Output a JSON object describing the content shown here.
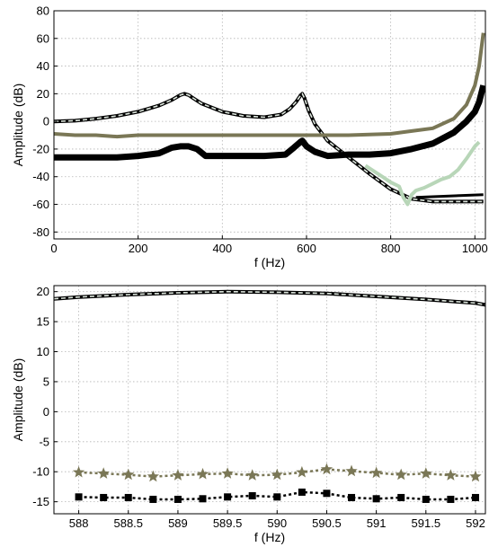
{
  "colors": {
    "model": "#000000",
    "model_inner": "#dfe8df",
    "stars": "#7a7756",
    "squares": "#000000",
    "lightgreen": "#b8d6b8"
  },
  "chart_data": [
    {
      "type": "line",
      "xlabel": "f (Hz)",
      "ylabel": "Amplitude (dB)",
      "xlim": [
        0,
        1025
      ],
      "ylim": [
        -85,
        80
      ],
      "xticks": [
        0,
        200,
        400,
        600,
        800,
        1000
      ],
      "yticks": [
        80,
        60,
        40,
        20,
        0,
        -20,
        -40,
        -60,
        -80
      ],
      "grid": true,
      "series": [
        {
          "style": "model",
          "x": [
            0,
            50,
            100,
            150,
            200,
            250,
            280,
            300,
            310,
            320,
            330,
            350,
            400,
            450,
            500,
            540,
            560,
            575,
            585,
            590,
            595,
            605,
            620,
            650,
            700,
            750,
            800,
            850,
            900,
            950,
            1000,
            1020
          ],
          "y": [
            0,
            0.5,
            2,
            4,
            7,
            11.5,
            15.5,
            19,
            20,
            19,
            17,
            13,
            7,
            4,
            3,
            5,
            9,
            14,
            18.5,
            20,
            17,
            8,
            -2,
            -14,
            -26,
            -38,
            -49,
            -56,
            -58,
            -58,
            -58,
            -58
          ]
        },
        {
          "style": "stars",
          "x": [
            0,
            50,
            100,
            150,
            200,
            300,
            400,
            500,
            600,
            700,
            800,
            850,
            900,
            950,
            980,
            1000,
            1010,
            1020
          ],
          "y": [
            -9,
            -10,
            -10,
            -11,
            -10,
            -10,
            -10,
            -10,
            -10,
            -10,
            -9,
            -7,
            -5,
            2,
            12,
            26,
            40,
            64
          ]
        },
        {
          "style": "squares",
          "x": [
            0,
            50,
            100,
            150,
            200,
            250,
            280,
            300,
            320,
            340,
            360,
            400,
            450,
            500,
            550,
            570,
            585,
            590,
            600,
            620,
            650,
            700,
            750,
            800,
            850,
            900,
            950,
            980,
            1000,
            1010,
            1020
          ],
          "y": [
            -26,
            -26,
            -26,
            -26,
            -25,
            -23,
            -19,
            -18,
            -18,
            -20,
            -25,
            -25,
            -25,
            -25,
            -24,
            -19,
            -15,
            -14,
            -18,
            -22,
            -25,
            -24,
            -24,
            -23,
            -20,
            -16,
            -8,
            0,
            7,
            14,
            26
          ]
        },
        {
          "style": "lightgreen",
          "x": [
            740,
            760,
            780,
            800,
            820,
            830,
            840,
            850,
            860,
            880,
            900,
            920,
            940,
            960,
            980,
            1000,
            1010
          ],
          "y": [
            -32,
            -36,
            -40,
            -44,
            -47,
            -55,
            -60,
            -53,
            -50,
            -48,
            -45,
            -42,
            -40,
            -35,
            -27,
            -18,
            -15
          ]
        },
        {
          "style": "flat",
          "x": [
            860,
            1020
          ],
          "y": [
            -55,
            -53
          ]
        }
      ]
    },
    {
      "type": "line",
      "xlabel": "f (Hz)",
      "ylabel": "Amplitude (dB)",
      "xlim": [
        587.75,
        592.1
      ],
      "ylim": [
        -17,
        21
      ],
      "xticks": [
        588,
        588.5,
        589,
        589.5,
        590,
        590.5,
        591,
        591.5,
        592
      ],
      "yticks": [
        20,
        15,
        10,
        5,
        0,
        -5,
        -10,
        -15
      ],
      "grid": true,
      "series": [
        {
          "style": "model",
          "x": [
            587.75,
            588,
            588.5,
            589,
            589.5,
            590,
            590.5,
            591,
            591.5,
            592,
            592.1
          ],
          "y": [
            18.8,
            19.1,
            19.5,
            19.8,
            20.0,
            19.9,
            19.7,
            19.2,
            18.7,
            18.1,
            17.8
          ]
        },
        {
          "style": "stars",
          "x": [
            588,
            588.25,
            588.5,
            588.75,
            589,
            589.25,
            589.5,
            589.75,
            590,
            590.25,
            590.5,
            590.75,
            591,
            591.25,
            591.5,
            591.75,
            592
          ],
          "y": [
            -10.1,
            -10.3,
            -10.5,
            -10.8,
            -10.6,
            -10.4,
            -10.3,
            -10.6,
            -10.5,
            -10.1,
            -9.6,
            -9.9,
            -10.2,
            -10.5,
            -10.3,
            -10.6,
            -10.8
          ]
        },
        {
          "style": "squares",
          "x": [
            588,
            588.25,
            588.5,
            588.75,
            589,
            589.25,
            589.5,
            589.75,
            590,
            590.25,
            590.5,
            590.75,
            591,
            591.25,
            591.5,
            591.75,
            592
          ],
          "y": [
            -14.2,
            -14.3,
            -14.3,
            -14.6,
            -14.6,
            -14.5,
            -14.2,
            -14.0,
            -14.2,
            -13.4,
            -13.6,
            -14.3,
            -14.5,
            -14.3,
            -14.6,
            -14.6,
            -14.3
          ]
        }
      ]
    }
  ]
}
